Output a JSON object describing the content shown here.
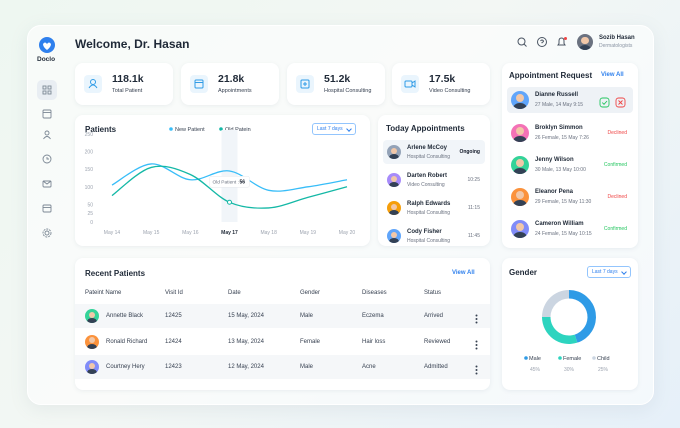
{
  "brand": "Doclo",
  "header": {
    "greeting": "Welcome, Dr. Hasan",
    "user_name": "Sozib Hasan",
    "user_role": "Dermatologists"
  },
  "stats": [
    {
      "value": "118.1k",
      "label": "Total Patient"
    },
    {
      "value": "21.8k",
      "label": "Appointments"
    },
    {
      "value": "51.2k",
      "label": "Hospital Consulting"
    },
    {
      "value": "17.5k",
      "label": "Video Consulting"
    }
  ],
  "chart_data": [
    {
      "type": "line",
      "title": "Patients",
      "filter": "Last 7 days",
      "categories": [
        "May 14",
        "May 15",
        "May 16",
        "May 17",
        "May 18",
        "May 19",
        "May 20"
      ],
      "series": [
        {
          "name": "New Patient",
          "color": "#38bdf8",
          "values": [
            105,
            165,
            120,
            145,
            90,
            100,
            120
          ]
        },
        {
          "name": "Old Patein",
          "color": "#14b8a6",
          "values": [
            75,
            155,
            135,
            56,
            40,
            70,
            100
          ]
        }
      ],
      "ylim": [
        0,
        250
      ],
      "yticks": [
        0,
        25,
        50,
        100,
        150,
        200,
        250
      ],
      "grid": false,
      "tooltip_label": "Old Patient :"
    },
    {
      "type": "pie",
      "title": "Gender",
      "filter": "Last 7 days",
      "categories": [
        "Male",
        "Female",
        "Child"
      ],
      "values": [
        45,
        30,
        25
      ],
      "value_labels": [
        "45%",
        "30%",
        "25%"
      ],
      "colors": [
        "#2f9be6",
        "#2dd4bf",
        "#cbd5e1"
      ],
      "donut": true
    }
  ],
  "today_appointments": {
    "title": "Today Appointments",
    "items": [
      {
        "name": "Arlene McCoy",
        "detail": "Hospital Consulting",
        "time": "Ongoing"
      },
      {
        "name": "Darten Robert",
        "detail": "Video Consulting",
        "time": "10:25"
      },
      {
        "name": "Ralph Edwards",
        "detail": "Hospital Consulting",
        "time": "11:15"
      },
      {
        "name": "Cody Fisher",
        "detail": "Hospital Consulting",
        "time": "11:45"
      }
    ]
  },
  "appointment_requests": {
    "title": "Appointment Request",
    "link": "View All",
    "items": [
      {
        "name": "Dianne Russell",
        "detail": "27 Male, 14 May 9:15"
      },
      {
        "name": "Broklyn Simmon",
        "detail": "26 Female, 15 May 7:26",
        "status": "Declined"
      },
      {
        "name": "Jenny Wilson",
        "detail": "30 Male, 13 May 10:00",
        "status": "Confirmed"
      },
      {
        "name": "Eleanor Pena",
        "detail": "29 Female, 15 May 11:30",
        "status": "Declined"
      },
      {
        "name": "Cameron William",
        "detail": "24 Female, 15 May 10:15",
        "status": "Confirmed"
      }
    ]
  },
  "recent_patients": {
    "title": "Recent Patients",
    "link": "View All",
    "columns": [
      "Pateint Name",
      "Visit Id",
      "Date",
      "Gender",
      "Diseases",
      "Status"
    ],
    "rows": [
      [
        "Annette Black",
        "12425",
        "15 May, 2024",
        "Male",
        "Eczema",
        "Arrived"
      ],
      [
        "Ronald Richard",
        "12424",
        "13 May, 2024",
        "Female",
        "Hair loss",
        "Reviewed"
      ],
      [
        "Courtney Hery",
        "12423",
        "12 May, 2024",
        "Male",
        "Acne",
        "Admitted"
      ]
    ]
  }
}
